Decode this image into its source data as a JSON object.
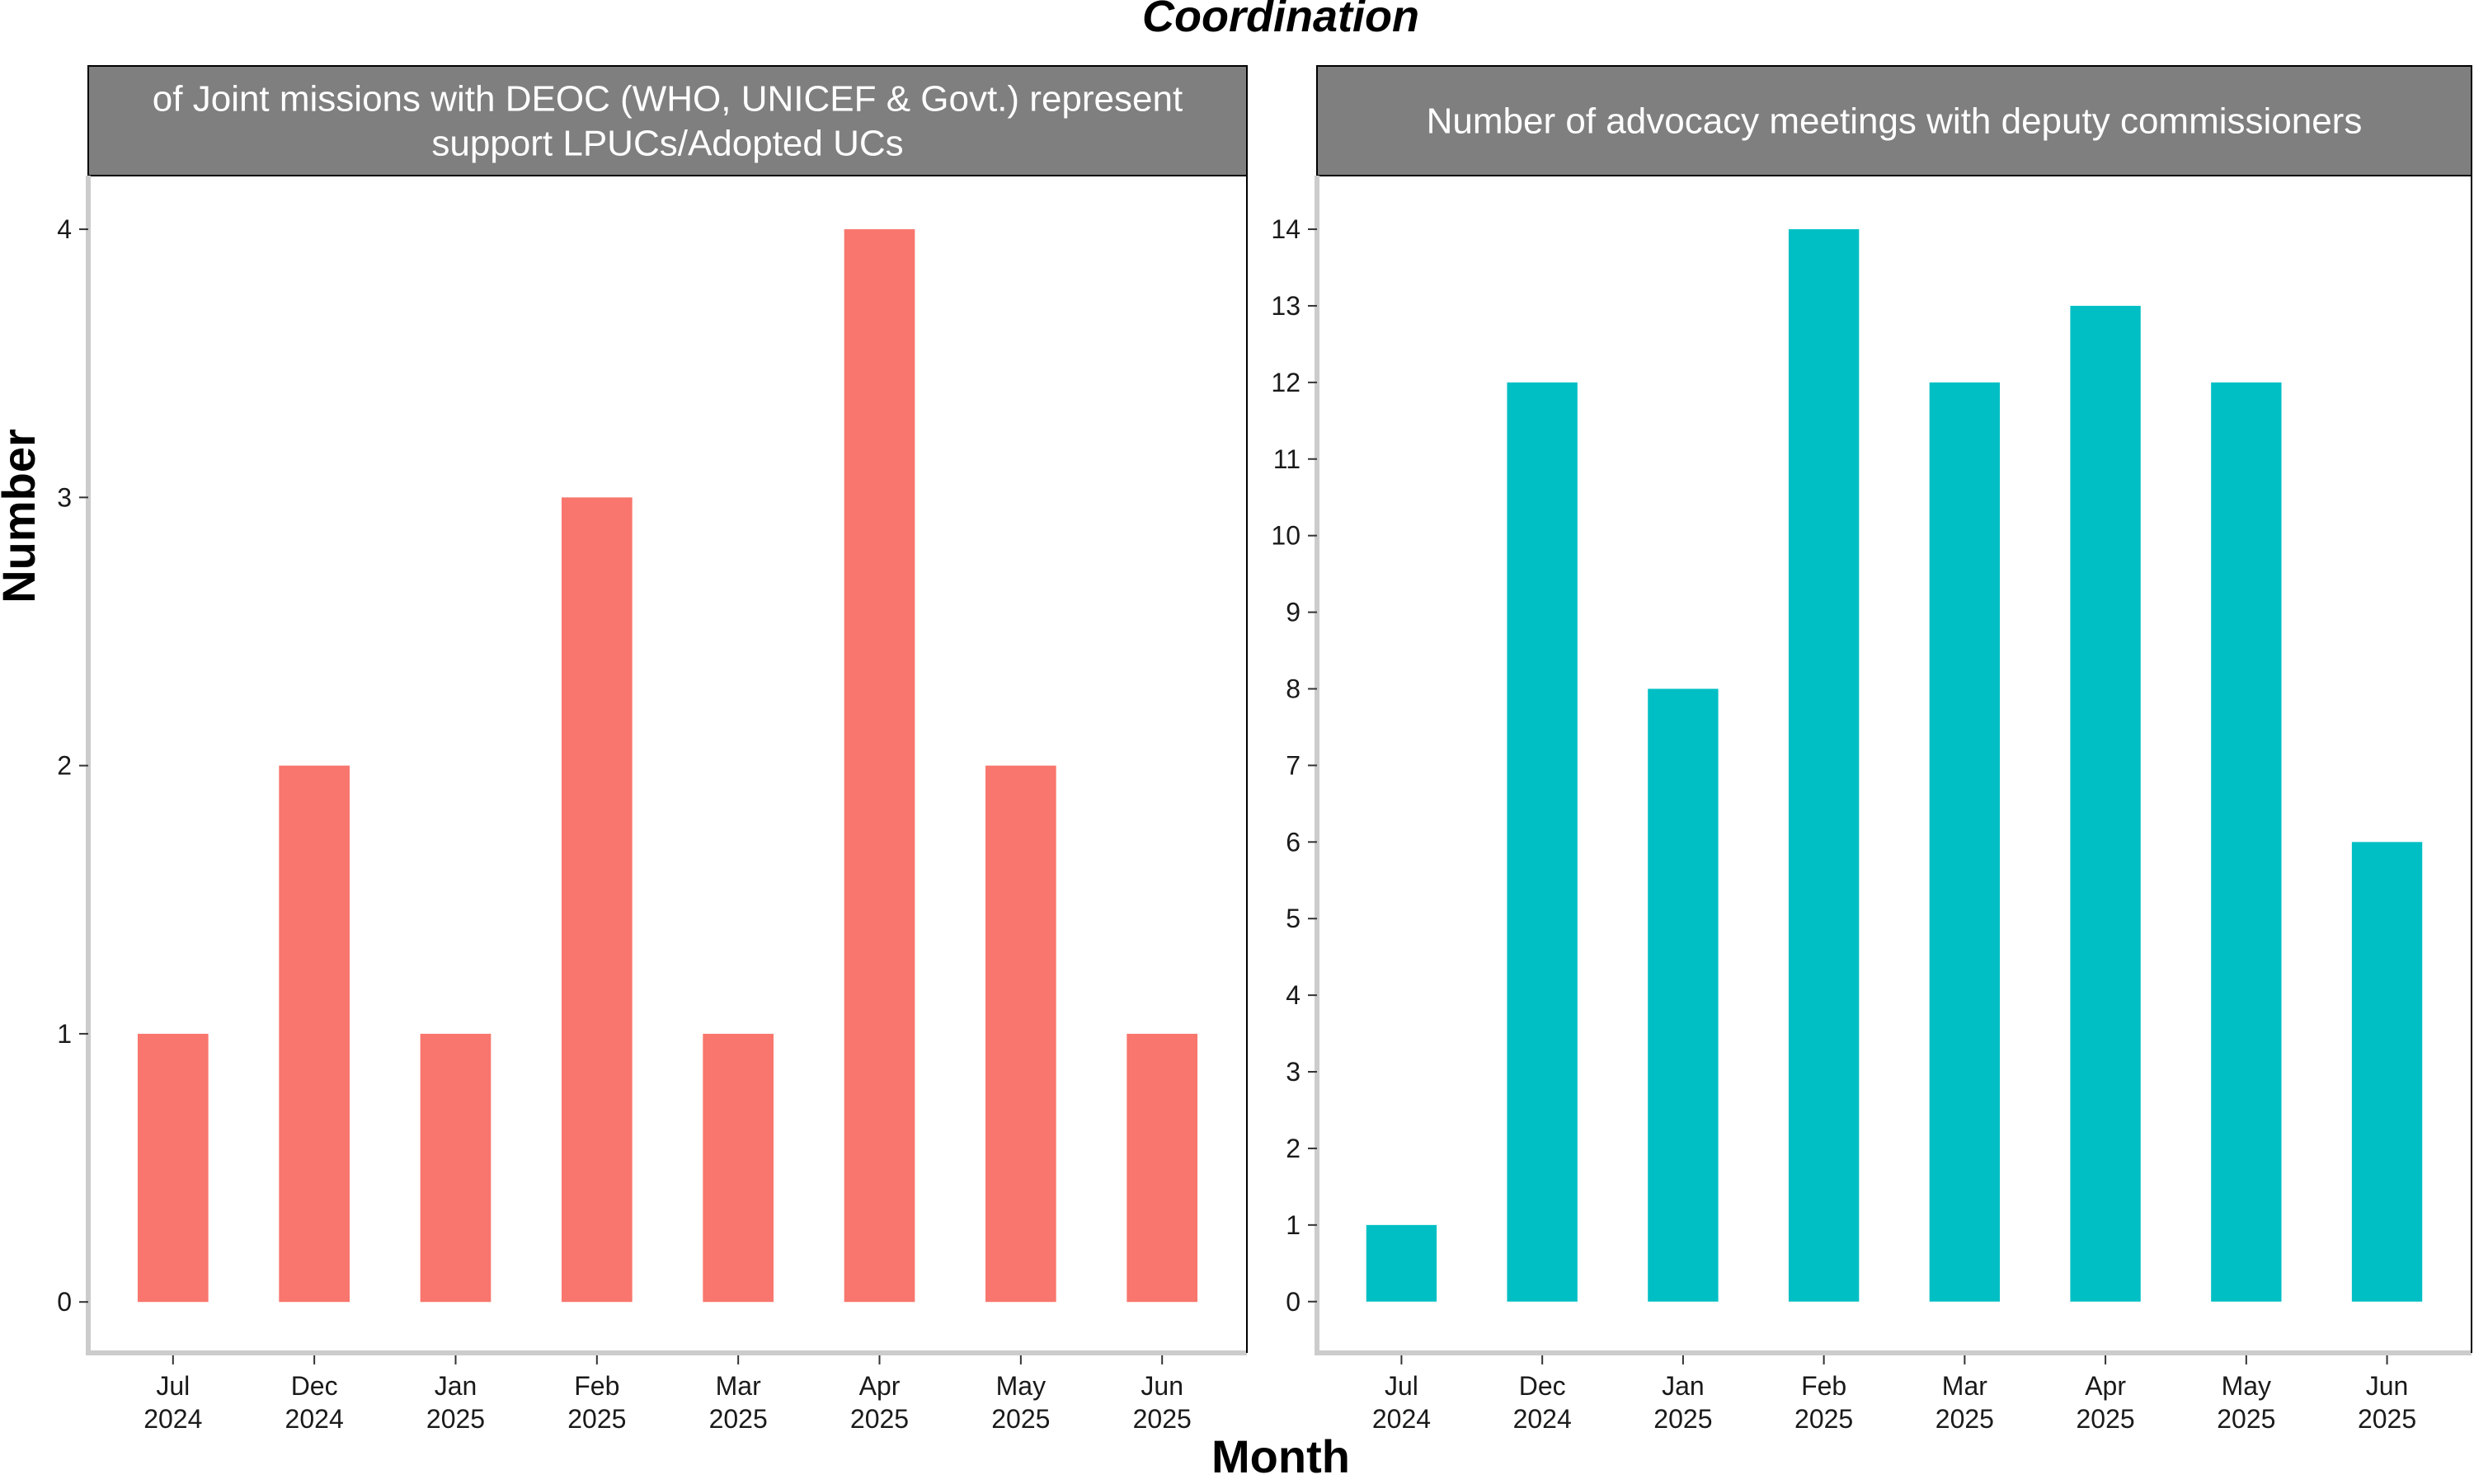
{
  "figure": {
    "title": "Coordination",
    "xlabel": "Month",
    "ylabel": "Number"
  },
  "colors": {
    "panel_1_bar": "#F8766D",
    "panel_2_bar": "#00BFC4",
    "strip_background": "#7F7F7F",
    "strip_text": "#FFFFFF",
    "axis_line": "#CCCCCC",
    "panel_border": "#000000"
  },
  "chart_data": [
    {
      "type": "bar",
      "title_lines": [
        "of Joint missions with DEOC (WHO, UNICEF & Govt.) represent",
        "support LPUCs/Adopted UCs"
      ],
      "categories": [
        "Jul 2024",
        "Dec 2024",
        "Jan 2025",
        "Feb 2025",
        "Mar 2025",
        "Apr 2025",
        "May 2025",
        "Jun 2025"
      ],
      "category_lines": [
        [
          "Jul",
          "2024"
        ],
        [
          "Dec",
          "2024"
        ],
        [
          "Jan",
          "2025"
        ],
        [
          "Feb",
          "2025"
        ],
        [
          "Mar",
          "2025"
        ],
        [
          "Apr",
          "2025"
        ],
        [
          "May",
          "2025"
        ],
        [
          "Jun",
          "2025"
        ]
      ],
      "values": [
        1,
        2,
        1,
        3,
        1,
        4,
        2,
        1
      ],
      "yticks": [
        0,
        1,
        2,
        3,
        4
      ],
      "ylim": [
        -0.19,
        4.2
      ],
      "xlabel": "Month",
      "ylabel": "Number",
      "grid": false,
      "legend": "none"
    },
    {
      "type": "bar",
      "title_lines": [
        "Number of advocacy meetings with deputy commissioners"
      ],
      "categories": [
        "Jul 2024",
        "Dec 2024",
        "Jan 2025",
        "Feb 2025",
        "Mar 2025",
        "Apr 2025",
        "May 2025",
        "Jun 2025"
      ],
      "category_lines": [
        [
          "Jul",
          "2024"
        ],
        [
          "Dec",
          "2024"
        ],
        [
          "Jan",
          "2025"
        ],
        [
          "Feb",
          "2025"
        ],
        [
          "Mar",
          "2025"
        ],
        [
          "Apr",
          "2025"
        ],
        [
          "May",
          "2025"
        ],
        [
          "Jun",
          "2025"
        ]
      ],
      "values": [
        1,
        12,
        8,
        14,
        12,
        13,
        12,
        6
      ],
      "yticks": [
        0,
        1,
        2,
        3,
        4,
        5,
        6,
        7,
        8,
        9,
        10,
        11,
        12,
        13,
        14
      ],
      "ylim": [
        -0.67,
        14.7
      ],
      "xlabel": "Month",
      "ylabel": "Number",
      "grid": false,
      "legend": "none"
    }
  ]
}
